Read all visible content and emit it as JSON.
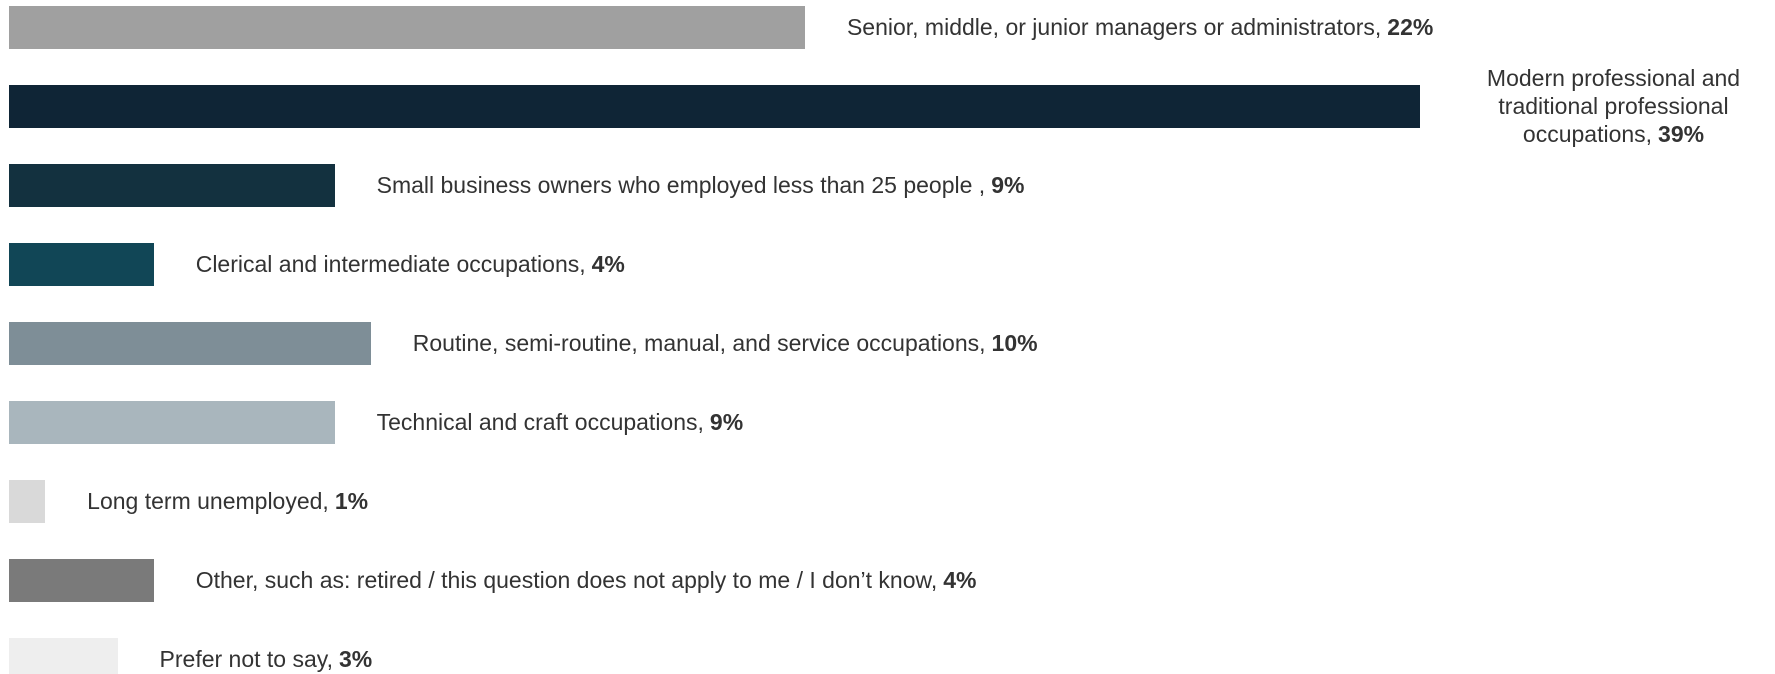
{
  "chart_data": {
    "type": "bar",
    "orientation": "horizontal",
    "categories": [
      "Senior, middle, or junior managers or administrators,",
      "Modern professional and traditional professional occupations,",
      "Small business owners who employed less than 25 people ,",
      "Clerical and intermediate occupations,",
      "Routine, semi-routine, manual, and service occupations,",
      "Technical and craft occupations,",
      "Long term unemployed,",
      "Other, such as: retired / this question does not apply to me / I don’t know,",
      "Prefer not to say,"
    ],
    "values": [
      22,
      39,
      9,
      4,
      10,
      9,
      1,
      4,
      3
    ],
    "value_labels": [
      "22%",
      "39%",
      "9%",
      "4%",
      "10%",
      "9%",
      "1%",
      "4%",
      "3%"
    ],
    "colors": [
      "#a0a0a0",
      "#0f2536",
      "#13313f",
      "#114656",
      "#7e8e97",
      "#a9b6bd",
      "#d9d9d9",
      "#7a7a7a",
      "#eeeeee"
    ],
    "xlim": [
      0,
      39
    ]
  }
}
